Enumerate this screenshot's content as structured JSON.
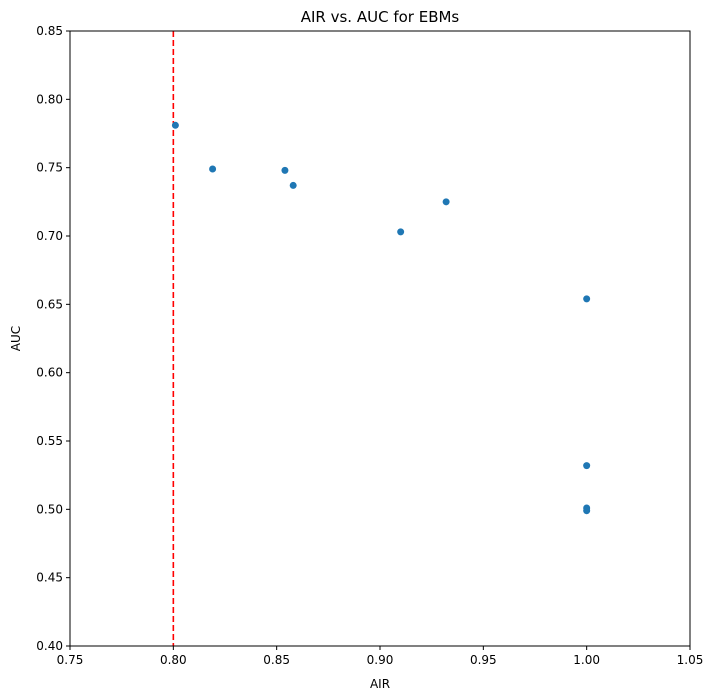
{
  "chart_data": {
    "type": "scatter",
    "title": "AIR vs. AUC for EBMs",
    "xlabel": "AIR",
    "ylabel": "AUC",
    "xlim": [
      0.75,
      1.05
    ],
    "ylim": [
      0.4,
      0.85
    ],
    "xticks": [
      "0.75",
      "0.80",
      "0.85",
      "0.90",
      "0.95",
      "1.00",
      "1.05"
    ],
    "yticks": [
      "0.40",
      "0.45",
      "0.50",
      "0.55",
      "0.60",
      "0.65",
      "0.70",
      "0.75",
      "0.80",
      "0.85"
    ],
    "grid": false,
    "series": [
      {
        "color": "#1f77b4",
        "points": [
          {
            "x": 0.801,
            "y": 0.781
          },
          {
            "x": 0.819,
            "y": 0.749
          },
          {
            "x": 0.854,
            "y": 0.748
          },
          {
            "x": 0.858,
            "y": 0.737
          },
          {
            "x": 0.91,
            "y": 0.703
          },
          {
            "x": 0.932,
            "y": 0.725
          },
          {
            "x": 1.0,
            "y": 0.654
          },
          {
            "x": 1.0,
            "y": 0.532
          },
          {
            "x": 1.0,
            "y": 0.501
          },
          {
            "x": 1.0,
            "y": 0.499
          }
        ]
      }
    ],
    "reference_line": {
      "orientation": "vertical",
      "x": 0.8,
      "color": "#ff0000",
      "style": "dashed"
    }
  }
}
